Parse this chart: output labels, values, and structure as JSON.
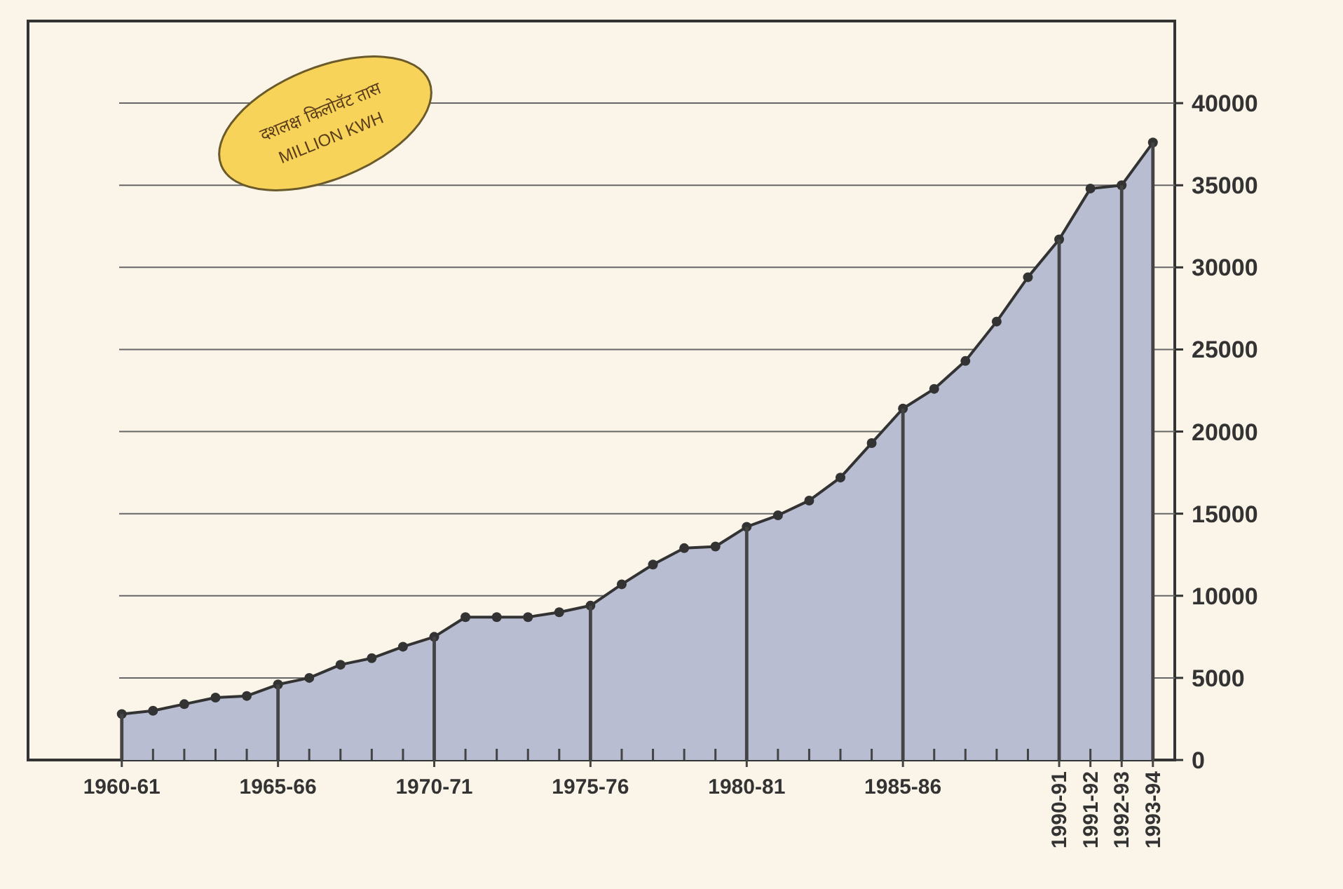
{
  "chart_data": {
    "type": "area",
    "categories": [
      "1960-61",
      null,
      null,
      null,
      null,
      "1965-66",
      null,
      null,
      null,
      null,
      "1970-71",
      null,
      null,
      null,
      null,
      "1975-76",
      null,
      null,
      null,
      null,
      "1980-81",
      null,
      null,
      null,
      null,
      "1985-86",
      null,
      null,
      null,
      null,
      "1990-91",
      "1991-92",
      "1992-93",
      "1993-94"
    ],
    "series": [
      {
        "type": "bar",
        "color": "#444444",
        "values": [
          2800,
          null,
          null,
          null,
          null,
          4600,
          null,
          null,
          null,
          null,
          7500,
          null,
          null,
          null,
          null,
          9400,
          null,
          null,
          null,
          null,
          14200,
          null,
          null,
          null,
          null,
          21400,
          null,
          null,
          null,
          null,
          31700,
          null,
          35000,
          37600
        ]
      },
      {
        "color": "#b8bdd2",
        "values": [
          2800,
          3000,
          3400,
          3800,
          3900,
          4600,
          5000,
          5800,
          6200,
          6900,
          7500,
          8700,
          8700,
          8700,
          9000,
          9400,
          10700,
          11900,
          12900,
          13000,
          14200,
          14900,
          15800,
          17200,
          19300,
          21400,
          22600,
          24300,
          26700,
          29400,
          31700,
          34800,
          35000,
          37600
        ]
      }
    ],
    "ylim": [
      0,
      45000
    ],
    "yticks": [
      0,
      5000,
      10000,
      15000,
      20000,
      25000,
      30000,
      35000,
      40000
    ],
    "grid": "y",
    "marker": "circle",
    "line_style": "solid",
    "annotations": [
      "दशलक्ष किलोवॅट तास",
      "MILLION KWH"
    ]
  }
}
